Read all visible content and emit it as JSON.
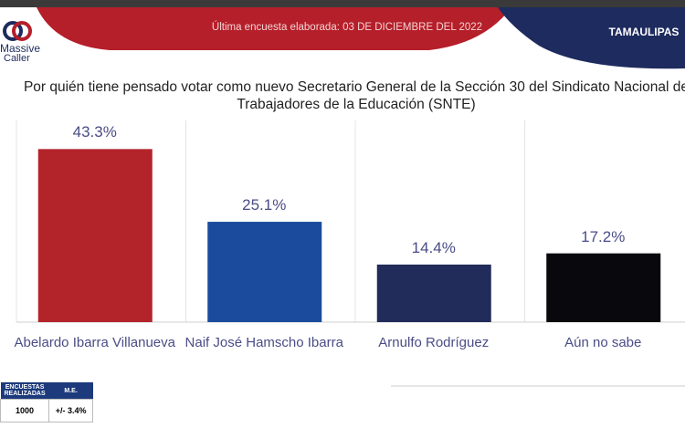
{
  "header": {
    "survey_note": "Última encuesta elaborada: 03 DE DICIEMBRE DEL 2022",
    "region": "TAMAULIPAS",
    "logo_line1": "Massive",
    "logo_line2": "Caller"
  },
  "chart_data": {
    "type": "bar",
    "title": "Por quién tiene pensado votar como nuevo Secretario General de la Sección 30 del Sindicato Nacional de Trabajadores de la Educación (SNTE)",
    "categories": [
      "Abelardo Ibarra Villanueva",
      "Naif José Hamscho Ibarra",
      "Arnulfo Rodríguez",
      "Aún no sabe"
    ],
    "values": [
      43.3,
      25.1,
      14.4,
      17.2
    ],
    "value_labels": [
      "43.3%",
      "25.1%",
      "14.4%",
      "17.2%"
    ],
    "colors": [
      "#b3242a",
      "#1a4b9c",
      "#222c5a",
      "#08080d"
    ],
    "ylim": [
      0,
      50
    ]
  },
  "table": {
    "headers": [
      "ENCUESTAS REALIZADAS",
      "M.E."
    ],
    "rows": [
      [
        "1000",
        "+/- 3.4%"
      ]
    ]
  }
}
